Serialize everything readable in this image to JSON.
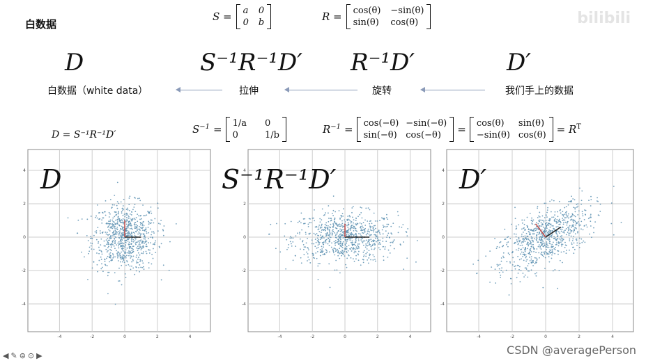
{
  "slide": {
    "title": "白数据",
    "watermark": "bilibili"
  },
  "formulas": {
    "s_def_lhs": "S =",
    "s_def_cells": [
      "a",
      "0",
      "0",
      "b"
    ],
    "r_def_lhs": "R =",
    "r_def_cells": [
      "cos(θ)",
      "−sin(θ)",
      "sin(θ)",
      "cos(θ)"
    ],
    "s_inv_lhs": "S",
    "s_inv_sup": "−1",
    "s_inv_eq": "=",
    "s_inv_cells": [
      "1/a",
      "0",
      "0",
      "1/b"
    ],
    "r_inv_lhs": "R",
    "r_inv_sup": "−1",
    "r_inv_eq": "=",
    "r_inv_cells1": [
      "cos(−θ)",
      "−sin(−θ)",
      "sin(−θ)",
      "cos(−θ)"
    ],
    "r_inv_eq2": "=",
    "r_inv_cells2": [
      "cos(θ)",
      "sin(θ)",
      "−sin(θ)",
      "cos(θ)"
    ],
    "r_inv_rhs": "= R",
    "r_inv_rhs_sup": "T",
    "d_eq": "D = S⁻¹R⁻¹D′"
  },
  "pipeline": {
    "symbols": [
      "D",
      "S⁻¹R⁻¹D′",
      "R⁻¹D′",
      "D′"
    ],
    "labels": [
      "白数据（white data）",
      "拉伸",
      "旋转",
      "我们手上的数据"
    ]
  },
  "plots": [
    {
      "label": "D",
      "x_ticks": [
        "-4",
        "-2",
        "0",
        "2",
        "4"
      ],
      "y_ticks": [
        "4",
        "2",
        "0",
        "-2",
        "-4"
      ],
      "x_range": [
        -5,
        5
      ],
      "y_range": [
        -5,
        5
      ],
      "grid": true
    },
    {
      "label": "S⁻¹R⁻¹D′",
      "x_ticks": [
        "-4",
        "-2",
        "0",
        "2",
        "4"
      ],
      "y_ticks": [
        "4",
        "2",
        "0",
        "-2",
        "-4"
      ],
      "x_range": [
        -5,
        5
      ],
      "y_range": [
        -5,
        5
      ],
      "grid": true
    },
    {
      "label": "D′",
      "x_ticks": [
        "-4",
        "-2",
        "0",
        "2",
        "4"
      ],
      "y_ticks": [
        "4",
        "2",
        "0",
        "-2",
        "-4"
      ],
      "x_range": [
        -5,
        5
      ],
      "y_range": [
        -5,
        5
      ],
      "grid": true
    }
  ],
  "colors": {
    "point": "#5b8fb0",
    "grid": "#cccccc",
    "axis_red": "#c0504d",
    "axis_dark": "#222222",
    "arrow": "#8a9ab8"
  },
  "footer": {
    "icons": [
      "back-icon",
      "pen-icon",
      "menu-icon",
      "more-icon",
      "forward-icon"
    ],
    "credit": "CSDN @averagePerson"
  }
}
